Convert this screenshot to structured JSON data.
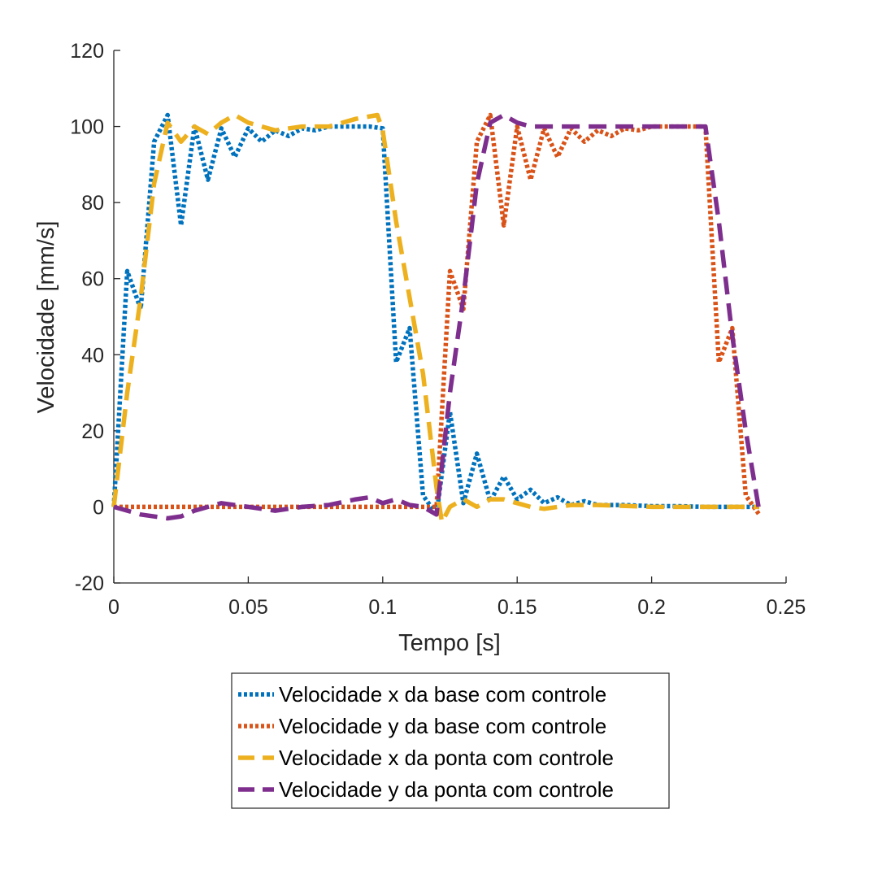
{
  "chart_data": {
    "type": "line",
    "title": "",
    "xlabel": "Tempo [s]",
    "ylabel": "Velocidade [mm/s]",
    "xlim": [
      0,
      0.25
    ],
    "ylim": [
      -20,
      120
    ],
    "xticks": [
      0,
      0.05,
      0.1,
      0.15,
      0.2,
      0.25
    ],
    "xtick_labels": [
      "0",
      "0.05",
      "0.1",
      "0.15",
      "0.2",
      "0.25"
    ],
    "yticks": [
      -20,
      0,
      20,
      40,
      60,
      80,
      100,
      120
    ],
    "ytick_labels": [
      "-20",
      "0",
      "20",
      "40",
      "60",
      "80",
      "100",
      "120"
    ],
    "grid": false,
    "legend_position": "below",
    "series": [
      {
        "name": "Velocidade x da base com controle",
        "color": "#0072BD",
        "style": "dotted",
        "x": [
          0,
          0.005,
          0.01,
          0.015,
          0.02,
          0.025,
          0.03,
          0.035,
          0.04,
          0.045,
          0.05,
          0.055,
          0.06,
          0.065,
          0.07,
          0.075,
          0.08,
          0.085,
          0.09,
          0.095,
          0.1,
          0.105,
          0.11,
          0.115,
          0.12,
          0.125,
          0.13,
          0.135,
          0.14,
          0.145,
          0.15,
          0.155,
          0.16,
          0.165,
          0.17,
          0.175,
          0.18,
          0.19,
          0.2,
          0.21,
          0.22,
          0.23,
          0.24
        ],
        "y": [
          0,
          62,
          52,
          96,
          103,
          74,
          100,
          86,
          99.5,
          92,
          99.5,
          96,
          99,
          97.5,
          99.5,
          99,
          100,
          100,
          100,
          100,
          99.5,
          38,
          47,
          3,
          -2,
          25,
          1,
          14,
          1.5,
          8,
          2,
          4.5,
          1,
          2.5,
          0.5,
          1.5,
          0.5,
          0.5,
          0.2,
          0.2,
          0,
          0,
          0
        ]
      },
      {
        "name": "Velocidade y da base com controle",
        "color": "#D95319",
        "style": "dotted",
        "x": [
          0,
          0.02,
          0.04,
          0.06,
          0.08,
          0.1,
          0.115,
          0.12,
          0.125,
          0.13,
          0.135,
          0.14,
          0.145,
          0.15,
          0.155,
          0.16,
          0.165,
          0.17,
          0.175,
          0.18,
          0.185,
          0.19,
          0.195,
          0.2,
          0.205,
          0.21,
          0.215,
          0.22,
          0.225,
          0.23,
          0.235,
          0.24
        ],
        "y": [
          0,
          0,
          0,
          0,
          0,
          0,
          0,
          0,
          62,
          52,
          96,
          103,
          74,
          100,
          86,
          99.5,
          92,
          99.5,
          96,
          99,
          97.5,
          99.5,
          99,
          100,
          100,
          100,
          100,
          100,
          38,
          47,
          3,
          -2
        ]
      },
      {
        "name": "Velocidade x da ponta com controle",
        "color": "#EDB120",
        "style": "dashed",
        "x": [
          0,
          0.005,
          0.01,
          0.015,
          0.02,
          0.025,
          0.03,
          0.035,
          0.04,
          0.045,
          0.05,
          0.06,
          0.07,
          0.08,
          0.09,
          0.098,
          0.1,
          0.105,
          0.11,
          0.115,
          0.12,
          0.122,
          0.125,
          0.13,
          0.135,
          0.14,
          0.145,
          0.15,
          0.155,
          0.16,
          0.17,
          0.18,
          0.2,
          0.22,
          0.24
        ],
        "y": [
          0,
          30,
          55,
          85,
          101,
          96,
          100,
          98,
          101,
          103,
          101,
          99,
          100,
          100,
          102,
          103,
          99,
          75,
          55,
          35,
          5,
          -4,
          0,
          2,
          0,
          2,
          2,
          1,
          0,
          -0.5,
          0.5,
          0.5,
          0,
          0,
          0
        ]
      },
      {
        "name": "Velocidade y da ponta com controle",
        "color": "#7E2F8E",
        "style": "dashed",
        "x": [
          0,
          0.01,
          0.02,
          0.025,
          0.03,
          0.035,
          0.04,
          0.05,
          0.06,
          0.07,
          0.08,
          0.09,
          0.095,
          0.1,
          0.105,
          0.11,
          0.115,
          0.12,
          0.125,
          0.13,
          0.135,
          0.14,
          0.145,
          0.15,
          0.155,
          0.16,
          0.17,
          0.18,
          0.2,
          0.21,
          0.22,
          0.225,
          0.23,
          0.235,
          0.24
        ],
        "y": [
          0,
          -2,
          -3,
          -2.5,
          -1,
          0,
          1,
          0,
          -1,
          0,
          0.5,
          2,
          2.5,
          1,
          2,
          0.5,
          0,
          -2,
          30,
          55,
          85,
          101,
          103,
          101,
          100,
          100,
          100,
          100,
          100,
          100,
          100,
          75,
          45,
          20,
          -1
        ]
      }
    ]
  }
}
